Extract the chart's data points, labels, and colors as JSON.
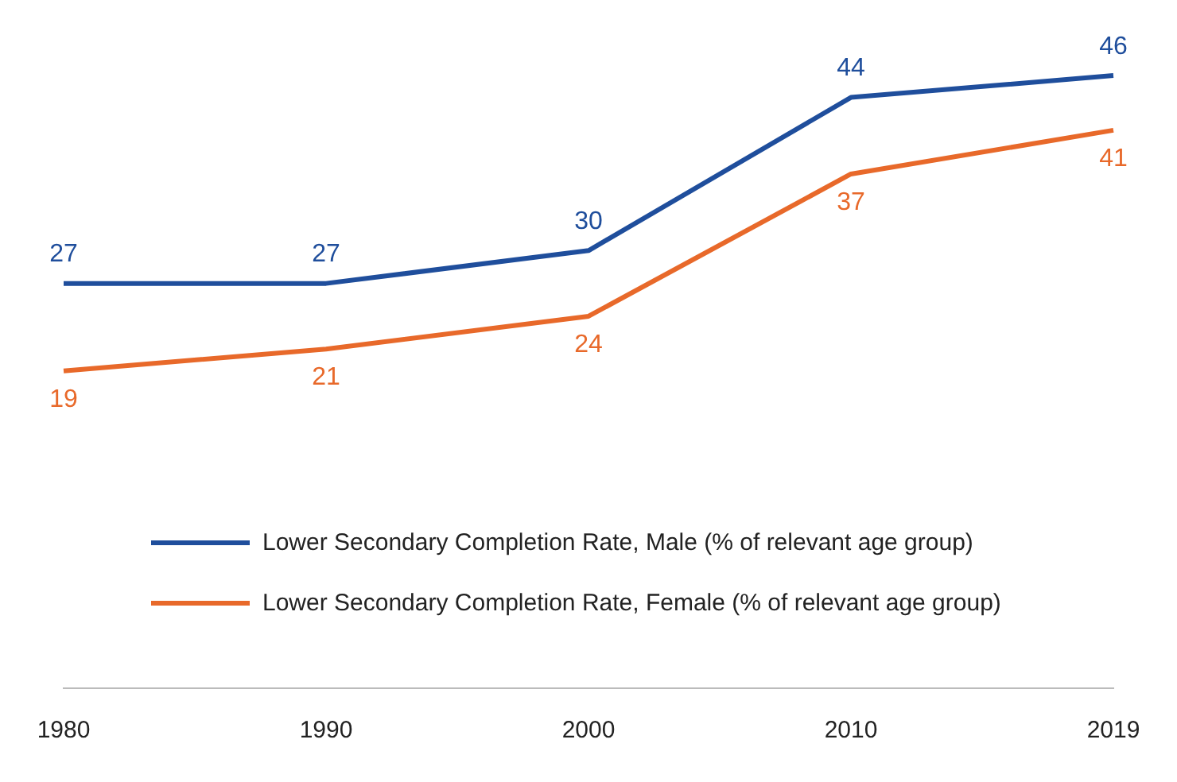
{
  "chart_data": {
    "type": "line",
    "categories": [
      "1980",
      "1990",
      "2000",
      "2010",
      "2019"
    ],
    "series": [
      {
        "name": "Lower Secondary Completion Rate, Male (% of relevant age group)",
        "color": "#1f4e9c",
        "values": [
          27,
          27,
          30,
          44,
          46
        ]
      },
      {
        "name": "Lower Secondary Completion Rate, Female (% of relevant age group)",
        "color": "#e8692a",
        "values": [
          19,
          21,
          24,
          37,
          41
        ]
      }
    ],
    "data_labels": true,
    "legend": "bottom",
    "grid": false,
    "marker": "none",
    "line_style": "solid",
    "tick_labels": "x"
  }
}
